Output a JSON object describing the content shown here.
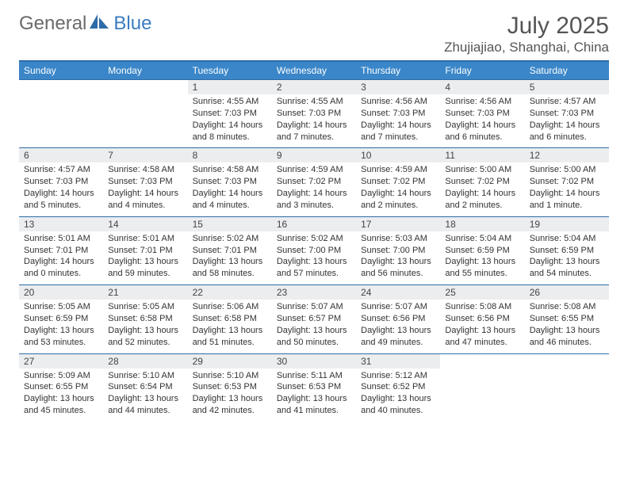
{
  "logo": {
    "text_general": "General",
    "text_blue": "Blue"
  },
  "title": "July 2025",
  "location": "Zhujiajiao, Shanghai, China",
  "colors": {
    "header_bg": "#3a86c8",
    "header_text": "#ffffff",
    "rule": "#2e6ca8",
    "daynum_bg": "#ebedef",
    "body_text": "#333333",
    "title_text": "#555555",
    "logo_gray": "#6a6a6a",
    "logo_blue": "#3a7cbf",
    "page_bg": "#ffffff"
  },
  "typography": {
    "title_fontsize": 30,
    "location_fontsize": 17,
    "dayhead_fontsize": 12,
    "cell_fontsize": 11,
    "font_family": "Arial"
  },
  "day_headers": [
    "Sunday",
    "Monday",
    "Tuesday",
    "Wednesday",
    "Thursday",
    "Friday",
    "Saturday"
  ],
  "weeks": [
    [
      {
        "n": "",
        "sunrise": "",
        "sunset": "",
        "daylight_a": "",
        "daylight_b": ""
      },
      {
        "n": "",
        "sunrise": "",
        "sunset": "",
        "daylight_a": "",
        "daylight_b": ""
      },
      {
        "n": "1",
        "sunrise": "Sunrise: 4:55 AM",
        "sunset": "Sunset: 7:03 PM",
        "daylight_a": "Daylight: 14 hours",
        "daylight_b": "and 8 minutes."
      },
      {
        "n": "2",
        "sunrise": "Sunrise: 4:55 AM",
        "sunset": "Sunset: 7:03 PM",
        "daylight_a": "Daylight: 14 hours",
        "daylight_b": "and 7 minutes."
      },
      {
        "n": "3",
        "sunrise": "Sunrise: 4:56 AM",
        "sunset": "Sunset: 7:03 PM",
        "daylight_a": "Daylight: 14 hours",
        "daylight_b": "and 7 minutes."
      },
      {
        "n": "4",
        "sunrise": "Sunrise: 4:56 AM",
        "sunset": "Sunset: 7:03 PM",
        "daylight_a": "Daylight: 14 hours",
        "daylight_b": "and 6 minutes."
      },
      {
        "n": "5",
        "sunrise": "Sunrise: 4:57 AM",
        "sunset": "Sunset: 7:03 PM",
        "daylight_a": "Daylight: 14 hours",
        "daylight_b": "and 6 minutes."
      }
    ],
    [
      {
        "n": "6",
        "sunrise": "Sunrise: 4:57 AM",
        "sunset": "Sunset: 7:03 PM",
        "daylight_a": "Daylight: 14 hours",
        "daylight_b": "and 5 minutes."
      },
      {
        "n": "7",
        "sunrise": "Sunrise: 4:58 AM",
        "sunset": "Sunset: 7:03 PM",
        "daylight_a": "Daylight: 14 hours",
        "daylight_b": "and 4 minutes."
      },
      {
        "n": "8",
        "sunrise": "Sunrise: 4:58 AM",
        "sunset": "Sunset: 7:03 PM",
        "daylight_a": "Daylight: 14 hours",
        "daylight_b": "and 4 minutes."
      },
      {
        "n": "9",
        "sunrise": "Sunrise: 4:59 AM",
        "sunset": "Sunset: 7:02 PM",
        "daylight_a": "Daylight: 14 hours",
        "daylight_b": "and 3 minutes."
      },
      {
        "n": "10",
        "sunrise": "Sunrise: 4:59 AM",
        "sunset": "Sunset: 7:02 PM",
        "daylight_a": "Daylight: 14 hours",
        "daylight_b": "and 2 minutes."
      },
      {
        "n": "11",
        "sunrise": "Sunrise: 5:00 AM",
        "sunset": "Sunset: 7:02 PM",
        "daylight_a": "Daylight: 14 hours",
        "daylight_b": "and 2 minutes."
      },
      {
        "n": "12",
        "sunrise": "Sunrise: 5:00 AM",
        "sunset": "Sunset: 7:02 PM",
        "daylight_a": "Daylight: 14 hours",
        "daylight_b": "and 1 minute."
      }
    ],
    [
      {
        "n": "13",
        "sunrise": "Sunrise: 5:01 AM",
        "sunset": "Sunset: 7:01 PM",
        "daylight_a": "Daylight: 14 hours",
        "daylight_b": "and 0 minutes."
      },
      {
        "n": "14",
        "sunrise": "Sunrise: 5:01 AM",
        "sunset": "Sunset: 7:01 PM",
        "daylight_a": "Daylight: 13 hours",
        "daylight_b": "and 59 minutes."
      },
      {
        "n": "15",
        "sunrise": "Sunrise: 5:02 AM",
        "sunset": "Sunset: 7:01 PM",
        "daylight_a": "Daylight: 13 hours",
        "daylight_b": "and 58 minutes."
      },
      {
        "n": "16",
        "sunrise": "Sunrise: 5:02 AM",
        "sunset": "Sunset: 7:00 PM",
        "daylight_a": "Daylight: 13 hours",
        "daylight_b": "and 57 minutes."
      },
      {
        "n": "17",
        "sunrise": "Sunrise: 5:03 AM",
        "sunset": "Sunset: 7:00 PM",
        "daylight_a": "Daylight: 13 hours",
        "daylight_b": "and 56 minutes."
      },
      {
        "n": "18",
        "sunrise": "Sunrise: 5:04 AM",
        "sunset": "Sunset: 6:59 PM",
        "daylight_a": "Daylight: 13 hours",
        "daylight_b": "and 55 minutes."
      },
      {
        "n": "19",
        "sunrise": "Sunrise: 5:04 AM",
        "sunset": "Sunset: 6:59 PM",
        "daylight_a": "Daylight: 13 hours",
        "daylight_b": "and 54 minutes."
      }
    ],
    [
      {
        "n": "20",
        "sunrise": "Sunrise: 5:05 AM",
        "sunset": "Sunset: 6:59 PM",
        "daylight_a": "Daylight: 13 hours",
        "daylight_b": "and 53 minutes."
      },
      {
        "n": "21",
        "sunrise": "Sunrise: 5:05 AM",
        "sunset": "Sunset: 6:58 PM",
        "daylight_a": "Daylight: 13 hours",
        "daylight_b": "and 52 minutes."
      },
      {
        "n": "22",
        "sunrise": "Sunrise: 5:06 AM",
        "sunset": "Sunset: 6:58 PM",
        "daylight_a": "Daylight: 13 hours",
        "daylight_b": "and 51 minutes."
      },
      {
        "n": "23",
        "sunrise": "Sunrise: 5:07 AM",
        "sunset": "Sunset: 6:57 PM",
        "daylight_a": "Daylight: 13 hours",
        "daylight_b": "and 50 minutes."
      },
      {
        "n": "24",
        "sunrise": "Sunrise: 5:07 AM",
        "sunset": "Sunset: 6:56 PM",
        "daylight_a": "Daylight: 13 hours",
        "daylight_b": "and 49 minutes."
      },
      {
        "n": "25",
        "sunrise": "Sunrise: 5:08 AM",
        "sunset": "Sunset: 6:56 PM",
        "daylight_a": "Daylight: 13 hours",
        "daylight_b": "and 47 minutes."
      },
      {
        "n": "26",
        "sunrise": "Sunrise: 5:08 AM",
        "sunset": "Sunset: 6:55 PM",
        "daylight_a": "Daylight: 13 hours",
        "daylight_b": "and 46 minutes."
      }
    ],
    [
      {
        "n": "27",
        "sunrise": "Sunrise: 5:09 AM",
        "sunset": "Sunset: 6:55 PM",
        "daylight_a": "Daylight: 13 hours",
        "daylight_b": "and 45 minutes."
      },
      {
        "n": "28",
        "sunrise": "Sunrise: 5:10 AM",
        "sunset": "Sunset: 6:54 PM",
        "daylight_a": "Daylight: 13 hours",
        "daylight_b": "and 44 minutes."
      },
      {
        "n": "29",
        "sunrise": "Sunrise: 5:10 AM",
        "sunset": "Sunset: 6:53 PM",
        "daylight_a": "Daylight: 13 hours",
        "daylight_b": "and 42 minutes."
      },
      {
        "n": "30",
        "sunrise": "Sunrise: 5:11 AM",
        "sunset": "Sunset: 6:53 PM",
        "daylight_a": "Daylight: 13 hours",
        "daylight_b": "and 41 minutes."
      },
      {
        "n": "31",
        "sunrise": "Sunrise: 5:12 AM",
        "sunset": "Sunset: 6:52 PM",
        "daylight_a": "Daylight: 13 hours",
        "daylight_b": "and 40 minutes."
      },
      {
        "n": "",
        "sunrise": "",
        "sunset": "",
        "daylight_a": "",
        "daylight_b": ""
      },
      {
        "n": "",
        "sunrise": "",
        "sunset": "",
        "daylight_a": "",
        "daylight_b": ""
      }
    ]
  ]
}
